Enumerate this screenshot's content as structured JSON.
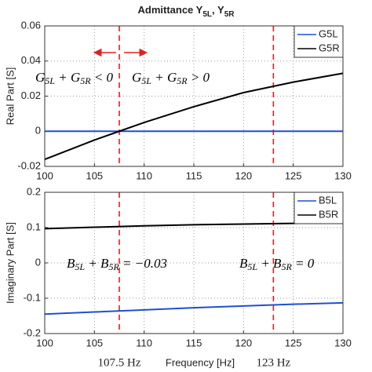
{
  "chart_data": [
    {
      "type": "line",
      "title": [
        "Admittance Y",
        "5L",
        ", Y",
        "5R"
      ],
      "y_label": "Real Part [S]",
      "x": [
        100,
        105,
        107.5,
        110,
        115,
        120,
        125,
        130
      ],
      "series": [
        {
          "name": "G5L",
          "color": "#1f4fd1",
          "values": [
            0,
            0,
            0,
            0,
            0,
            0,
            0,
            0
          ]
        },
        {
          "name": "G5R",
          "color": "#000000",
          "values": [
            -0.016,
            -0.005,
            0,
            0.005,
            0.014,
            0.022,
            0.028,
            0.033
          ]
        }
      ],
      "xlim": [
        100,
        130
      ],
      "xticks": [
        100,
        105,
        110,
        115,
        120,
        125,
        130
      ],
      "ylim": [
        -0.02,
        0.06
      ],
      "yticks": [
        -0.02,
        0,
        0.02,
        0.04,
        0.06
      ],
      "grid": true,
      "legend": "upper right",
      "annotations": [
        [
          "G",
          "5L",
          " + G",
          "5R",
          " < 0"
        ],
        [
          "G",
          "5L",
          " + G",
          "5R",
          " > 0"
        ]
      ]
    },
    {
      "type": "line",
      "y_label": "Imaginary Part [S]",
      "x_label": "Frequency [Hz]",
      "x": [
        100,
        105,
        110,
        115,
        120,
        125,
        130
      ],
      "series": [
        {
          "name": "B5L",
          "color": "#1f4fd1",
          "values": [
            -0.145,
            -0.139,
            -0.133,
            -0.127,
            -0.122,
            -0.117,
            -0.113
          ]
        },
        {
          "name": "B5R",
          "color": "#000000",
          "values": [
            0.097,
            0.101,
            0.105,
            0.108,
            0.11,
            0.112,
            0.113
          ]
        }
      ],
      "xlim": [
        100,
        130
      ],
      "xticks": [
        100,
        105,
        110,
        115,
        120,
        125,
        130
      ],
      "ylim": [
        -0.2,
        0.2
      ],
      "yticks": [
        -0.2,
        -0.1,
        0,
        0.1,
        0.2
      ],
      "grid": true,
      "legend": "upper right",
      "annotations": [
        [
          "B",
          "5L",
          " + B",
          "5R",
          " = −0.03"
        ],
        [
          "B",
          "5L",
          " + B",
          "5R",
          " = 0"
        ]
      ],
      "vlines": [
        {
          "x": 107.5,
          "label": "107.5 Hz",
          "color": "#e02020"
        },
        {
          "x": 123,
          "label": "123 Hz",
          "color": "#e02020"
        }
      ]
    }
  ]
}
